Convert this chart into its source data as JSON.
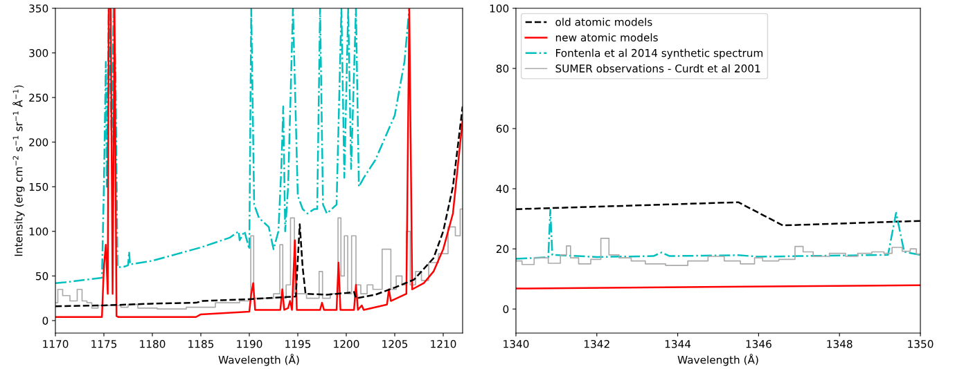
{
  "chart_data": [
    {
      "type": "line",
      "xlabel": "Wavelength (Å)",
      "ylabel": "Intensity (erg cm$^{−2}$ s$^{−1}$ sr$^{−1}$ Å$^{−1}$)",
      "xlim": [
        1170,
        1212
      ],
      "ylim": [
        -14,
        350
      ],
      "xticks": [
        1170,
        1175,
        1180,
        1185,
        1190,
        1195,
        1200,
        1205,
        1210
      ],
      "yticks": [
        0,
        50,
        100,
        150,
        200,
        250,
        300,
        350
      ],
      "grid": false,
      "legend": false,
      "series": [
        {
          "color": "#aaaaaa",
          "type": "step",
          "line_style": "solid",
          "x": [
            1170,
            1170.5,
            1171,
            1172,
            1172.5,
            1173,
            1173.5,
            1174,
            1174.8,
            1176.5,
            1177,
            1178,
            1179,
            1182,
            1185,
            1188,
            1190,
            1190.3,
            1190.6,
            1192,
            1193,
            1193.3,
            1193.6,
            1194,
            1194.5,
            1194.8,
            1197,
            1197.4,
            1197.7,
            1199,
            1199.3,
            1199.6,
            1200,
            1200.3,
            1200.8,
            1201.2,
            1201.8,
            1202.5,
            1203,
            1204.4,
            1204.8,
            1205.5,
            1206,
            1206.4,
            1206.8,
            1207.5,
            1208,
            1209,
            1210,
            1211,
            1211.5,
            1212
          ],
          "values": [
            20,
            35,
            28,
            22,
            35,
            22,
            20,
            14,
            17,
            17,
            15,
            18,
            14,
            13,
            15,
            20,
            22,
            95,
            25,
            25,
            30,
            85,
            25,
            40,
            115,
            30,
            25,
            55,
            25,
            30,
            115,
            50,
            95,
            30,
            95,
            40,
            30,
            40,
            35,
            80,
            35,
            50,
            40,
            100,
            40,
            55,
            45,
            65,
            75,
            105,
            95,
            125
          ]
        },
        {
          "color": "#00bfbf",
          "line_style": "dashdot",
          "x": [
            1170,
            1171,
            1174.8,
            1175,
            1175.2,
            1175.3,
            1175.5,
            1175.8,
            1176,
            1176.2,
            1176.4,
            1177,
            1177.5,
            1177.6,
            1177.7,
            1180,
            1185,
            1188,
            1188.9,
            1189,
            1189.5,
            1190,
            1190.2,
            1190.5,
            1191,
            1192,
            1192.5,
            1193,
            1193.3,
            1193.5,
            1193.7,
            1194,
            1194.5,
            1195,
            1195.5,
            1196,
            1196.7,
            1197,
            1197.3,
            1197.6,
            1198,
            1199,
            1199.5,
            1199.8,
            1200.2,
            1200.5,
            1201,
            1201.3,
            1201.8,
            1203,
            1205,
            1206,
            1206.5
          ],
          "values": [
            42,
            43,
            48,
            150,
            290,
            150,
            350,
            200,
            350,
            280,
            60,
            60,
            62,
            77,
            63,
            67,
            82,
            93,
            100,
            90,
            100,
            80,
            350,
            130,
            115,
            105,
            80,
            100,
            170,
            240,
            100,
            150,
            350,
            140,
            125,
            120,
            125,
            125,
            350,
            130,
            120,
            130,
            350,
            160,
            350,
            170,
            350,
            150,
            160,
            180,
            230,
            290,
            350
          ]
        },
        {
          "color": "#ff0000",
          "line_style": "solid",
          "x": [
            1170,
            1174.8,
            1175,
            1175.2,
            1175.4,
            1175.5,
            1175.7,
            1175.9,
            1176.1,
            1176.3,
            1176.5,
            1184.5,
            1185,
            1190,
            1190.2,
            1190.4,
            1190.6,
            1193.2,
            1193.4,
            1193.6,
            1194.0,
            1194.2,
            1194.4,
            1194.7,
            1194.9,
            1197.3,
            1197.5,
            1197.7,
            1199.0,
            1199.2,
            1199.4,
            1200.8,
            1201,
            1201.2,
            1201.6,
            1201.8,
            1204.2,
            1204.4,
            1204.6,
            1206.2,
            1206.5,
            1206.8,
            1208,
            1209,
            1210,
            1211,
            1212
          ],
          "values": [
            4,
            4,
            60,
            85,
            30,
            350,
            350,
            30,
            350,
            5,
            4,
            4,
            7,
            10,
            30,
            42,
            12,
            12,
            35,
            12,
            14,
            22,
            12,
            90,
            12,
            12,
            20,
            12,
            12,
            65,
            12,
            12,
            40,
            12,
            17,
            12,
            18,
            35,
            22,
            30,
            350,
            35,
            42,
            55,
            80,
            120,
            225
          ]
        },
        {
          "color": "#000000",
          "line_style": "dashed",
          "x": [
            1170,
            1175,
            1180,
            1184.5,
            1185.2,
            1190,
            1194.8,
            1195.2,
            1195.5,
            1195.8,
            1198,
            1200,
            1200.8,
            1201,
            1203,
            1205,
            1207,
            1209,
            1210,
            1211,
            1212
          ],
          "values": [
            16,
            17,
            19,
            20,
            22,
            24,
            27,
            108,
            60,
            30,
            29,
            31,
            32,
            25,
            29,
            37,
            46,
            70,
            100,
            150,
            240
          ]
        }
      ]
    },
    {
      "type": "line",
      "xlabel": "Wavelength (Å)",
      "xlim": [
        1340,
        1350
      ],
      "ylim": [
        -8,
        100
      ],
      "xticks": [
        1340,
        1342,
        1344,
        1346,
        1348,
        1350
      ],
      "yticks": [
        0,
        20,
        40,
        60,
        80,
        100
      ],
      "grid": false,
      "legend": "top left",
      "series": [
        {
          "name": "old atomic models",
          "color": "#000000",
          "line_style": "dashed",
          "x": [
            1340,
            1345.5,
            1346.6,
            1350
          ],
          "values": [
            33.2,
            35.5,
            27.8,
            29.3
          ]
        },
        {
          "name": "new atomic models",
          "color": "#ff0000",
          "line_style": "solid",
          "x": [
            1340,
            1350
          ],
          "values": [
            6.8,
            7.9
          ]
        },
        {
          "name": "Fontenla et al 2014 synthetic spectrum",
          "color": "#00bfbf",
          "line_style": "dashdot",
          "x": [
            1340,
            1340.8,
            1340.85,
            1340.9,
            1342,
            1343.4,
            1343.6,
            1343.8,
            1345.5,
            1346,
            1347,
            1349.2,
            1349.4,
            1349.6,
            1349.8,
            1350
          ],
          "values": [
            16.7,
            17.2,
            33,
            18,
            17.3,
            17.6,
            18.8,
            17.6,
            17.9,
            17.4,
            17.6,
            18,
            32,
            19,
            18.5,
            18
          ]
        },
        {
          "name": "SUMER observations - Curdt et al 2001",
          "color": "#aaaaaa",
          "type": "step",
          "line_style": "solid",
          "x": [
            1340,
            1340.3,
            1340.6,
            1341,
            1341.2,
            1341.3,
            1341.4,
            1341.7,
            1342,
            1342.2,
            1342.4,
            1342.7,
            1343,
            1343.4,
            1344,
            1344.5,
            1345,
            1345.3,
            1345.8,
            1346,
            1346.2,
            1346.8,
            1347,
            1347.2,
            1347.5,
            1348,
            1348.3,
            1348.6,
            1349,
            1349.2,
            1349.4,
            1349.7,
            1349.8,
            1350
          ],
          "values": [
            16,
            14.8,
            17,
            15.2,
            18,
            21,
            17,
            15,
            16.5,
            23.5,
            18,
            17,
            16,
            15,
            14.5,
            16,
            17.5,
            16,
            15,
            17,
            16,
            16.5,
            20.8,
            19,
            17.5,
            18.5,
            17.5,
            18.5,
            19,
            18.5,
            20.5,
            19.2,
            20,
            18.3
          ]
        }
      ]
    }
  ]
}
